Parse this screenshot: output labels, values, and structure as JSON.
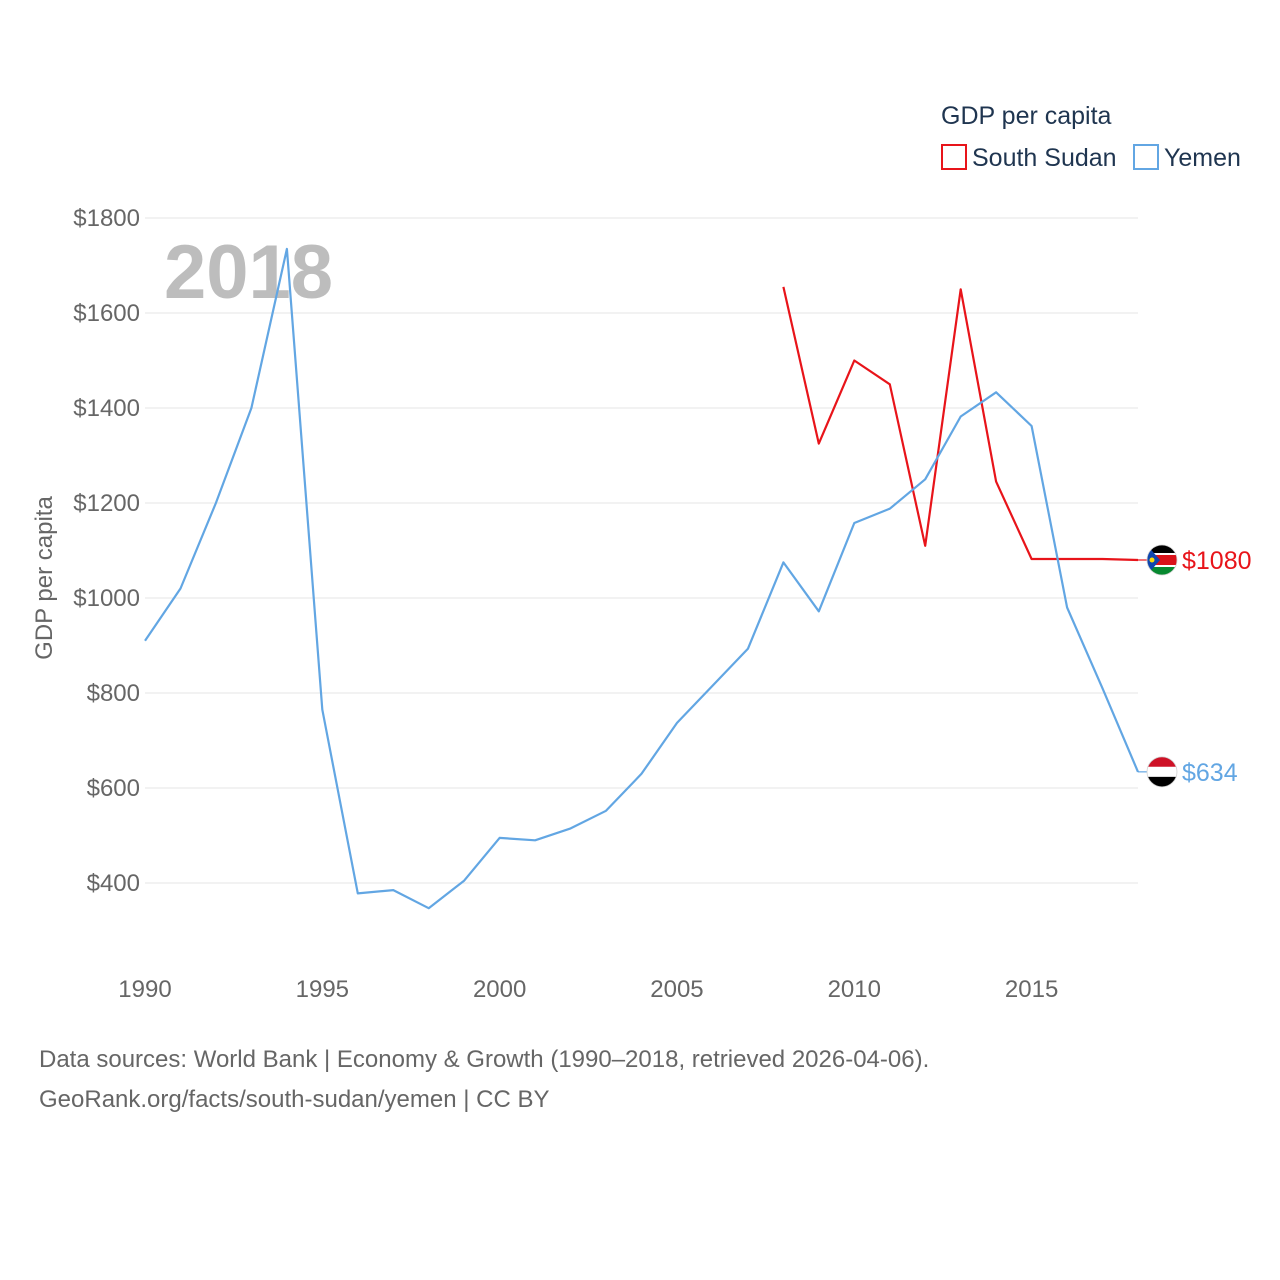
{
  "chart_data": {
    "type": "line",
    "year_label": "2018",
    "legend_title": "GDP per capita",
    "ylabel": "GDP per capita",
    "xlabel": "",
    "xlim": [
      1990,
      2018
    ],
    "ylim": [
      300,
      1850
    ],
    "x_ticks": [
      1990,
      1995,
      2000,
      2005,
      2010,
      2015
    ],
    "y_ticks": [
      400,
      600,
      800,
      1000,
      1200,
      1400,
      1600,
      1800
    ],
    "y_tick_labels": [
      "$400",
      "$600",
      "$800",
      "$1000",
      "$1200",
      "$1400",
      "$1600",
      "$1800"
    ],
    "grid": true,
    "legend_position": "top-right",
    "series": [
      {
        "name": "South Sudan",
        "color": "#e8141a",
        "flag": "south-sudan-flag",
        "end_label": "$1080",
        "end_value": 1080,
        "x": [
          2008,
          2009,
          2010,
          2011,
          2012,
          2013,
          2014,
          2015,
          2016,
          2017,
          2018
        ],
        "values": [
          1655,
          1325,
          1500,
          1450,
          1110,
          1650,
          1245,
          1082,
          1082,
          1082,
          1080
        ]
      },
      {
        "name": "Yemen",
        "color": "#62a6e3",
        "flag": "yemen-flag",
        "end_label": "$634",
        "end_value": 634,
        "x": [
          1990,
          1991,
          1992,
          1993,
          1994,
          1995,
          1996,
          1997,
          1998,
          1999,
          2000,
          2001,
          2002,
          2003,
          2004,
          2005,
          2006,
          2007,
          2008,
          2009,
          2010,
          2011,
          2012,
          2013,
          2014,
          2015,
          2016,
          2017,
          2018
        ],
        "values": [
          910,
          1020,
          1200,
          1400,
          1735,
          765,
          378,
          385,
          347,
          405,
          495,
          490,
          515,
          552,
          630,
          737,
          815,
          893,
          1075,
          972,
          1158,
          1188,
          1250,
          1382,
          1433,
          1362,
          980,
          810,
          634
        ]
      }
    ]
  },
  "source": {
    "line1": "Data sources: World Bank | Economy & Growth (1990–2018, retrieved 2026-04-06).",
    "line2": "GeoRank.org/facts/south-sudan/yemen | CC BY"
  }
}
